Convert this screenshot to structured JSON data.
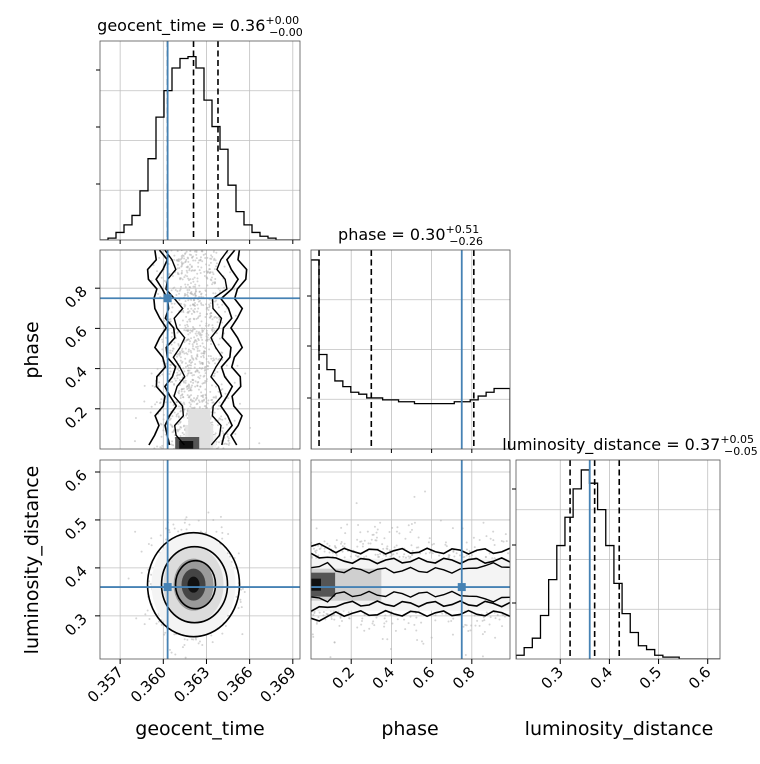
{
  "chart_data": {
    "type": "corner",
    "parameters": [
      "geocent_time",
      "phase",
      "luminosity_distance"
    ],
    "truths": {
      "geocent_time": 0.3603,
      "phase": 0.75,
      "luminosity_distance": 0.36
    },
    "colors": {
      "truth": "#4682b4",
      "hist": "#000000",
      "grid": "#c0c0c0",
      "quantile": "#000000",
      "points": "#b0b0b0"
    },
    "titles": {
      "geocent_time": {
        "name": "geocent_time",
        "value": "0.36",
        "plus": "+0.00",
        "minus": "−0.00"
      },
      "phase": {
        "name": "phase",
        "value": "0.30",
        "plus": "+0.51",
        "minus": "−0.26"
      },
      "luminosity_distance": {
        "name": "luminosity_distance",
        "value": "0.37",
        "plus": "+0.05",
        "minus": "−0.05"
      }
    },
    "axes": {
      "geocent_time": {
        "range": [
          0.3556,
          0.3695
        ],
        "ticks": [
          0.357,
          0.36,
          0.363,
          0.366,
          0.369
        ],
        "tick_labels": [
          "0.357",
          "0.360",
          "0.363",
          "0.366",
          "0.369"
        ]
      },
      "phase": {
        "range": [
          0.0,
          0.99
        ],
        "ticks": [
          0.2,
          0.4,
          0.6,
          0.8
        ],
        "tick_labels": [
          "0.2",
          "0.4",
          "0.6",
          "0.8"
        ]
      },
      "luminosity_distance": {
        "range": [
          0.21,
          0.625
        ],
        "ticks": [
          0.3,
          0.4,
          0.5,
          0.6
        ],
        "tick_labels": [
          "0.3",
          "0.4",
          "0.5",
          "0.6"
        ]
      }
    },
    "quantiles": {
      "geocent_time": [
        0.3603,
        0.3621,
        0.3638
      ],
      "phase": [
        0.04,
        0.3,
        0.81
      ],
      "luminosity_distance": [
        0.32,
        0.37,
        0.42
      ]
    },
    "histograms": {
      "geocent_time": [
        0.0,
        0.01,
        0.04,
        0.08,
        0.13,
        0.26,
        0.43,
        0.65,
        0.79,
        0.91,
        0.96,
        0.97,
        0.91,
        0.74,
        0.6,
        0.48,
        0.29,
        0.15,
        0.08,
        0.04,
        0.02,
        0.01,
        0.0,
        0.0,
        0.0
      ],
      "phase": [
        1.0,
        0.5,
        0.42,
        0.36,
        0.33,
        0.3,
        0.29,
        0.27,
        0.27,
        0.26,
        0.26,
        0.25,
        0.25,
        0.24,
        0.24,
        0.24,
        0.24,
        0.24,
        0.25,
        0.25,
        0.26,
        0.28,
        0.3,
        0.32,
        0.32
      ],
      "luminosity_distance": [
        0.02,
        0.06,
        0.11,
        0.23,
        0.42,
        0.6,
        0.75,
        0.9,
        1.0,
        0.93,
        0.79,
        0.6,
        0.4,
        0.24,
        0.14,
        0.07,
        0.05,
        0.02,
        0.01,
        0.01,
        0.0,
        0.0,
        0.0,
        0.0,
        0.0
      ]
    },
    "grid": true
  }
}
